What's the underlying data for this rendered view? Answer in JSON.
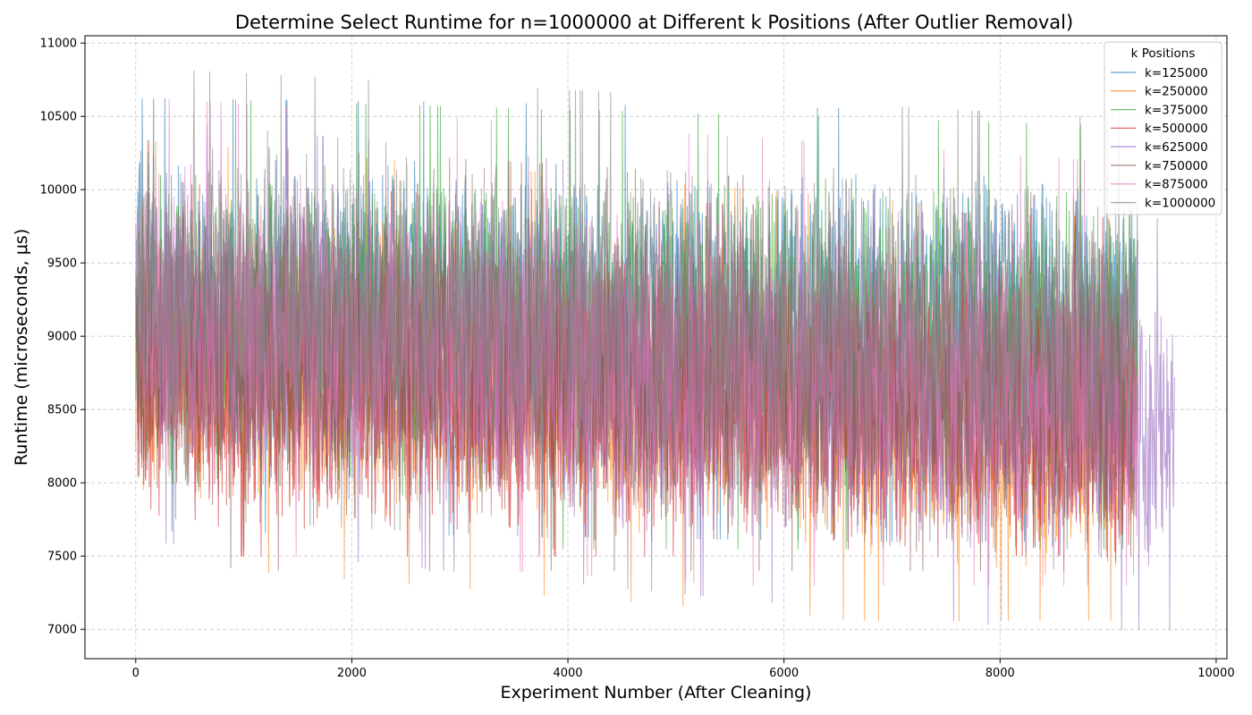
{
  "chart_data": {
    "type": "line",
    "title": "Determine Select Runtime for n=1000000 at Different k Positions (After Outlier Removal)",
    "xlabel": "Experiment Number (After Cleaning)",
    "ylabel": "Runtime (microseconds, μs)",
    "xlim": [
      -470,
      10100
    ],
    "ylim": [
      6800,
      11050
    ],
    "xticks": [
      0,
      2000,
      4000,
      6000,
      8000,
      10000
    ],
    "yticks": [
      7000,
      7500,
      8000,
      8500,
      9000,
      9500,
      10000,
      10500,
      11000
    ],
    "grid": true,
    "legend": {
      "title": "k Positions",
      "placement": "top-right"
    },
    "series": [
      {
        "name": "k=125000",
        "color": "#1f77b4",
        "n_points": 9280,
        "trend_start": 9150,
        "trend_end": 9050,
        "spread": 820,
        "min": 7600,
        "max": 10620
      },
      {
        "name": "k=250000",
        "color": "#ff7f0e",
        "n_points": 9280,
        "trend_start": 8900,
        "trend_end": 8350,
        "spread": 800,
        "min": 7060,
        "max": 10450
      },
      {
        "name": "k=375000",
        "color": "#2ca02c",
        "n_points": 9280,
        "trend_start": 9100,
        "trend_end": 8900,
        "spread": 850,
        "min": 7550,
        "max": 10620
      },
      {
        "name": "k=500000",
        "color": "#d62728",
        "n_points": 9250,
        "trend_start": 8700,
        "trend_end": 8450,
        "spread": 750,
        "min": 7500,
        "max": 10250
      },
      {
        "name": "k=625000",
        "color": "#9467bd",
        "n_points": 9620,
        "trend_start": 9050,
        "trend_end": 8350,
        "spread": 800,
        "min": 7000,
        "max": 10600
      },
      {
        "name": "k=750000",
        "color": "#8c564b",
        "n_points": 9250,
        "trend_start": 8900,
        "trend_end": 8500,
        "spread": 800,
        "min": 7400,
        "max": 10800
      },
      {
        "name": "k=875000",
        "color": "#e377c2",
        "n_points": 9280,
        "trend_start": 9100,
        "trend_end": 8650,
        "spread": 850,
        "min": 7300,
        "max": 10800
      },
      {
        "name": "k=1000000",
        "color": "#7f7f7f",
        "n_points": 9280,
        "trend_start": 9300,
        "trend_end": 8950,
        "spread": 850,
        "min": 7600,
        "max": 10860
      }
    ]
  }
}
